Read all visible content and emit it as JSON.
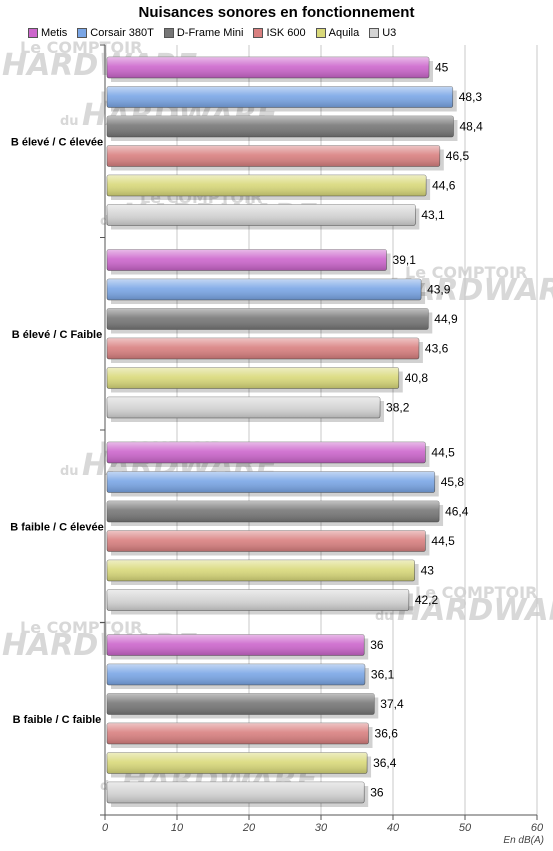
{
  "chart_data": {
    "type": "bar",
    "orientation": "horizontal",
    "title": "Nuisances sonores en fonctionnement",
    "xlabel": "En dB(A)",
    "xlim": [
      0,
      60
    ],
    "xticks": [
      0,
      10,
      20,
      30,
      40,
      50,
      60
    ],
    "grid": true,
    "legend_position": "top",
    "categories": [
      "B élevé / C élevée",
      "B élevé / C Faible",
      "B faible / C élevée",
      "B faible / C faible"
    ],
    "series": [
      {
        "name": "Metis",
        "color": "#cc66cc",
        "values": [
          45,
          39.1,
          44.5,
          36
        ]
      },
      {
        "name": "Corsair 380T",
        "color": "#7aa6e6",
        "values": [
          48.3,
          43.9,
          45.8,
          36.1
        ]
      },
      {
        "name": "D-Frame Mini",
        "color": "#777777",
        "values": [
          48.4,
          44.9,
          46.4,
          37.4
        ]
      },
      {
        "name": "ISK 600",
        "color": "#d98080",
        "values": [
          46.5,
          43.6,
          44.5,
          36.6
        ]
      },
      {
        "name": "Aquila",
        "color": "#d9d97a",
        "values": [
          44.6,
          40.8,
          43,
          36.4
        ]
      },
      {
        "name": "U3",
        "color": "#d4d4d4",
        "values": [
          43.1,
          38.2,
          42.2,
          36
        ]
      }
    ],
    "value_labels": [
      [
        "45",
        "39,1",
        "44,5",
        "36"
      ],
      [
        "48,3",
        "43,9",
        "45,8",
        "36,1"
      ],
      [
        "48,4",
        "44,9",
        "46,4",
        "37,4"
      ],
      [
        "46,5",
        "43,6",
        "44,5",
        "36,6"
      ],
      [
        "44,6",
        "40,8",
        "43",
        "36,4"
      ],
      [
        "43,1",
        "38,2",
        "42,2",
        "36"
      ]
    ]
  },
  "watermark": {
    "line1": "Le COMPTOIR",
    "line2": "du",
    "line3": "HARDWARE"
  }
}
